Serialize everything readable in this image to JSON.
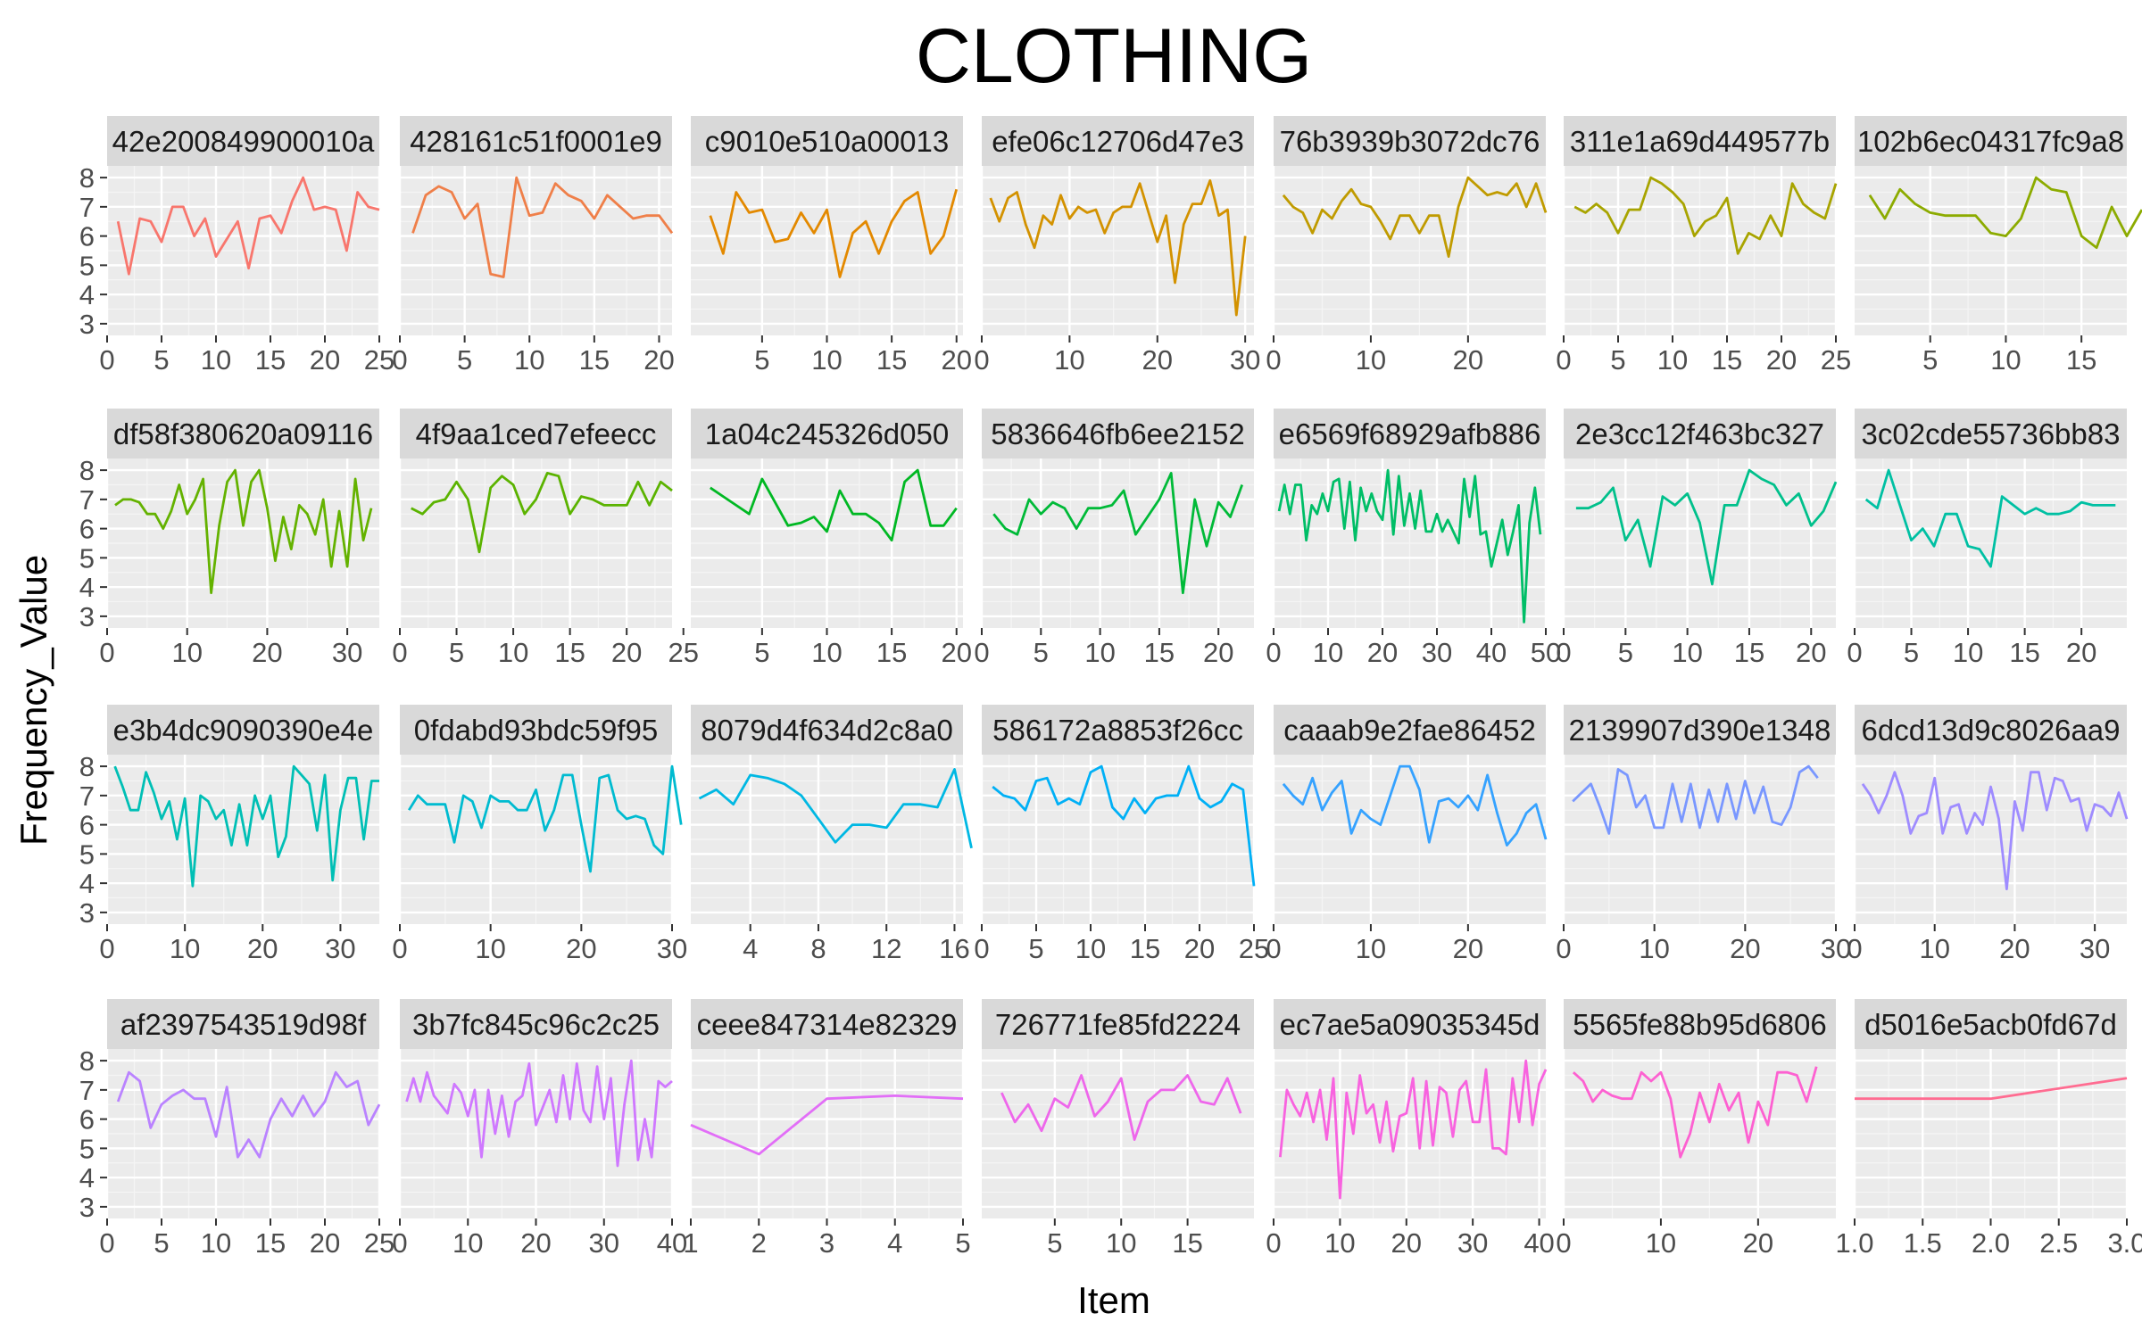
{
  "chart_data": {
    "type": "line",
    "title": "CLOTHING",
    "xlabel": "Item",
    "ylabel": "Frequency_Value",
    "ylim": [
      2.6,
      8.4
    ],
    "y_ticks": [
      3,
      4,
      5,
      6,
      7,
      8
    ],
    "grid": true,
    "legend": "none",
    "panels": [
      {
        "label": "42e200849900010a",
        "color": "#F8766D",
        "xlim": [
          0,
          25
        ],
        "x_ticks": [
          0,
          5,
          10,
          15,
          20,
          25
        ],
        "values": [
          6.5,
          4.7,
          6.6,
          6.5,
          5.8,
          7.0,
          7.0,
          6.0,
          6.6,
          5.3,
          5.9,
          6.5,
          4.9,
          6.6,
          6.7,
          6.1,
          7.2,
          8.0,
          6.9,
          7.0,
          6.9,
          5.5,
          7.5,
          7.0,
          6.9
        ]
      },
      {
        "label": "428161c51f0001e9",
        "color": "#EF7F49",
        "xlim": [
          0,
          21
        ],
        "x_ticks": [
          0,
          5,
          10,
          15,
          20
        ],
        "values": [
          6.1,
          7.4,
          7.7,
          7.5,
          6.6,
          7.1,
          4.7,
          4.6,
          8.0,
          6.7,
          6.8,
          7.8,
          7.4,
          7.2,
          6.6,
          7.4,
          7.0,
          6.6,
          6.7,
          6.7,
          6.1
        ]
      },
      {
        "label": "c9010e510a00013",
        "color": "#E38900",
        "xlim": [
          -0.5,
          20.5
        ],
        "x_ticks": [
          5,
          10,
          15,
          20
        ],
        "values": [
          6.7,
          5.4,
          7.5,
          6.8,
          6.9,
          5.8,
          5.9,
          6.8,
          6.1,
          6.9,
          4.6,
          6.1,
          6.5,
          5.4,
          6.5,
          7.2,
          7.5,
          5.4,
          6.0,
          7.6
        ]
      },
      {
        "label": "efe06c12706d47e3",
        "color": "#D39200",
        "xlim": [
          0,
          31
        ],
        "x_ticks": [
          0,
          10,
          20,
          30
        ],
        "values": [
          7.3,
          6.5,
          7.3,
          7.5,
          6.4,
          5.6,
          6.7,
          6.4,
          7.4,
          6.6,
          7.0,
          6.8,
          6.9,
          6.1,
          6.8,
          7.0,
          7.0,
          7.8,
          6.8,
          5.8,
          6.7,
          4.4,
          6.4,
          7.1,
          7.1,
          7.9,
          6.7,
          6.9,
          3.3,
          6.0
        ]
      },
      {
        "label": "76b3939b3072dc76",
        "color": "#C09B00",
        "xlim": [
          0,
          28
        ],
        "x_ticks": [
          0,
          10,
          20
        ],
        "values": [
          7.4,
          7.0,
          6.8,
          6.1,
          6.9,
          6.6,
          7.2,
          7.6,
          7.1,
          7.0,
          6.5,
          5.9,
          6.7,
          6.7,
          6.1,
          6.7,
          6.7,
          5.3,
          7.0,
          8.0,
          7.7,
          7.4,
          7.5,
          7.4,
          7.8,
          7.0,
          7.8,
          6.8
        ]
      },
      {
        "label": "311e1a69d449577b",
        "color": "#A8A400",
        "xlim": [
          0,
          25
        ],
        "x_ticks": [
          0,
          5,
          10,
          15,
          20,
          25
        ],
        "values": [
          7.0,
          6.8,
          7.1,
          6.8,
          6.1,
          6.9,
          6.9,
          8.0,
          7.8,
          7.5,
          7.1,
          6.0,
          6.5,
          6.7,
          7.3,
          5.4,
          6.1,
          5.9,
          6.7,
          6.0,
          7.8,
          7.1,
          6.8,
          6.6,
          7.8
        ]
      },
      {
        "label": "102b6ec04317fc9a8",
        "color": "#8CAB00",
        "xlim": [
          0,
          18
        ],
        "x_ticks": [
          5,
          10,
          15
        ],
        "values": [
          7.4,
          6.6,
          7.6,
          7.1,
          6.8,
          6.7,
          6.7,
          6.7,
          6.1,
          6.0,
          6.6,
          8.0,
          7.6,
          7.5,
          6.0,
          5.6,
          7.0,
          6.0,
          6.9
        ]
      },
      {
        "label": "df58f380620a09116",
        "color": "#64B200",
        "xlim": [
          0,
          34
        ],
        "x_ticks": [
          0,
          10,
          20,
          30
        ],
        "values": [
          6.8,
          7.0,
          7.0,
          6.9,
          6.5,
          6.5,
          6.0,
          6.6,
          7.5,
          6.5,
          7.0,
          7.7,
          3.8,
          6.1,
          7.6,
          8.0,
          6.1,
          7.6,
          8.0,
          6.7,
          4.9,
          6.4,
          5.3,
          6.8,
          6.5,
          5.8,
          7.0,
          4.7,
          6.6,
          4.7,
          7.7,
          5.6,
          6.7
        ]
      },
      {
        "label": "4f9aa1ced7efeecc",
        "color": "#5BB300",
        "xlim": [
          0,
          24
        ],
        "x_ticks": [
          0,
          5,
          10,
          15,
          20,
          25
        ],
        "values": [
          6.7,
          6.5,
          6.9,
          7.0,
          7.6,
          7.0,
          5.2,
          7.4,
          7.8,
          7.5,
          6.5,
          7.0,
          7.9,
          7.8,
          6.5,
          7.1,
          7.0,
          6.8,
          6.8,
          6.8,
          7.6,
          6.8,
          7.6,
          7.3
        ]
      },
      {
        "label": "1a04c245326d050",
        "color": "#00B823",
        "xlim": [
          -0.5,
          20.5
        ],
        "x_ticks": [
          5,
          10,
          15,
          20
        ],
        "values": [
          7.4,
          7.1,
          6.8,
          6.5,
          7.7,
          6.9,
          6.1,
          6.2,
          6.4,
          5.9,
          7.3,
          6.5,
          6.5,
          6.2,
          5.6,
          7.6,
          8.0,
          6.1,
          6.1,
          6.7
        ]
      },
      {
        "label": "5836646fb6ee2152",
        "color": "#00BA38",
        "xlim": [
          0,
          23
        ],
        "x_ticks": [
          0,
          5,
          10,
          15,
          20
        ],
        "values": [
          6.5,
          6.0,
          5.8,
          7.0,
          6.5,
          6.9,
          6.7,
          6.0,
          6.7,
          6.7,
          6.8,
          7.3,
          5.8,
          6.4,
          7.0,
          7.9,
          3.8,
          7.0,
          5.4,
          6.9,
          6.4,
          7.5
        ]
      },
      {
        "label": "e6569f68929afb886",
        "color": "#00BE67",
        "xlim": [
          0,
          50
        ],
        "x_ticks": [
          0,
          10,
          20,
          30,
          40,
          50
        ],
        "values": [
          6.6,
          7.5,
          6.5,
          7.5,
          7.5,
          5.6,
          6.8,
          6.5,
          7.2,
          6.6,
          7.6,
          7.7,
          6.0,
          7.6,
          5.6,
          7.4,
          6.6,
          7.2,
          6.6,
          6.3,
          8.0,
          5.8,
          7.8,
          6.1,
          7.2,
          6.0,
          7.3,
          5.9,
          5.9,
          6.5,
          5.9,
          6.3,
          5.9,
          5.5,
          7.7,
          6.4,
          7.8,
          5.8,
          5.9,
          4.7,
          5.5,
          6.3,
          5.1,
          5.9,
          6.8,
          2.8,
          6.2,
          7.4,
          5.8
        ]
      },
      {
        "label": "2e3cc12f463bc327",
        "color": "#00C08B",
        "xlim": [
          0,
          22
        ],
        "x_ticks": [
          0,
          5,
          10,
          15,
          20
        ],
        "values": [
          6.7,
          6.7,
          6.9,
          7.4,
          5.6,
          6.3,
          4.7,
          7.1,
          6.8,
          7.2,
          6.2,
          4.1,
          6.8,
          6.8,
          8.0,
          7.7,
          7.5,
          6.8,
          7.2,
          6.1,
          6.6,
          7.6
        ]
      },
      {
        "label": "3c02cde55736bb83",
        "color": "#00C0A3",
        "xlim": [
          0,
          24
        ],
        "x_ticks": [
          0,
          5,
          10,
          15,
          20
        ],
        "values": [
          7.0,
          6.7,
          8.0,
          6.8,
          5.6,
          6.0,
          5.4,
          6.5,
          6.5,
          5.4,
          5.3,
          4.7,
          7.1,
          6.8,
          6.5,
          6.7,
          6.5,
          6.5,
          6.6,
          6.9,
          6.8,
          6.8,
          6.8
        ]
      },
      {
        "label": "e3b4dc9090390e4e",
        "color": "#00BFB5",
        "xlim": [
          0,
          35
        ],
        "x_ticks": [
          0,
          10,
          20,
          30
        ],
        "values": [
          8.0,
          7.3,
          6.5,
          6.5,
          7.8,
          7.1,
          6.2,
          6.8,
          5.5,
          6.9,
          3.9,
          7.0,
          6.8,
          6.2,
          6.5,
          5.3,
          6.7,
          5.3,
          7.0,
          6.2,
          7.0,
          4.9,
          5.6,
          8.0,
          7.7,
          7.4,
          5.8,
          7.7,
          4.1,
          6.5,
          7.6,
          7.6,
          5.5,
          7.5,
          7.5
        ]
      },
      {
        "label": "0fdabd93bdc59f95",
        "color": "#00BBD0",
        "xlim": [
          0,
          30
        ],
        "x_ticks": [
          0,
          10,
          20,
          30
        ],
        "values": [
          6.5,
          7.0,
          6.7,
          6.7,
          6.7,
          5.4,
          7.0,
          6.8,
          5.9,
          7.0,
          6.8,
          6.8,
          6.5,
          6.5,
          7.2,
          5.8,
          6.5,
          7.7,
          7.7,
          6.0,
          4.4,
          7.6,
          7.7,
          6.5,
          6.2,
          6.3,
          6.2,
          5.3,
          5.0,
          8.0,
          6.0
        ]
      },
      {
        "label": "8079d4f634d2c8a0",
        "color": "#00B8E3",
        "xlim": [
          0.5,
          16.5
        ],
        "x_ticks": [
          4,
          8,
          12,
          16
        ],
        "values": [
          6.9,
          7.2,
          6.7,
          7.7,
          7.6,
          7.4,
          7.0,
          6.2,
          5.4,
          6.0,
          6.0,
          5.9,
          6.7,
          6.7,
          6.6,
          7.9,
          5.2
        ]
      },
      {
        "label": "586172a8853f26cc",
        "color": "#00B0F6",
        "xlim": [
          0,
          25
        ],
        "x_ticks": [
          0,
          5,
          10,
          15,
          20,
          25
        ],
        "values": [
          7.3,
          7.0,
          6.9,
          6.5,
          7.5,
          7.6,
          6.7,
          6.9,
          6.7,
          7.8,
          8.0,
          6.6,
          6.2,
          6.9,
          6.4,
          6.9,
          7.0,
          7.0,
          8.0,
          6.9,
          6.6,
          6.8,
          7.4,
          7.2,
          3.9
        ]
      },
      {
        "label": "caaab9e2fae86452",
        "color": "#35A2FF",
        "xlim": [
          0,
          28
        ],
        "x_ticks": [
          0,
          10,
          20
        ],
        "values": [
          7.4,
          7.0,
          6.7,
          7.6,
          6.5,
          7.1,
          7.5,
          5.7,
          6.5,
          6.2,
          6.0,
          7.0,
          8.0,
          8.0,
          7.2,
          5.4,
          6.8,
          6.9,
          6.6,
          7.0,
          6.5,
          7.7,
          6.4,
          5.3,
          5.7,
          6.4,
          6.7,
          5.5
        ]
      },
      {
        "label": "2139907d390e1348",
        "color": "#7997FF",
        "xlim": [
          0,
          30
        ],
        "x_ticks": [
          0,
          10,
          20,
          30
        ],
        "values": [
          6.8,
          7.1,
          7.4,
          6.6,
          5.7,
          7.9,
          7.7,
          6.6,
          7.0,
          5.9,
          5.9,
          7.4,
          6.1,
          7.4,
          5.9,
          7.2,
          6.1,
          7.4,
          6.2,
          7.5,
          6.4,
          7.3,
          6.1,
          6.0,
          6.6,
          7.8,
          8.0,
          7.6
        ]
      },
      {
        "label": "6dcd13d9c8026aa9",
        "color": "#9F8CFF",
        "xlim": [
          0,
          34
        ],
        "x_ticks": [
          0,
          10,
          20,
          30
        ],
        "values": [
          7.4,
          7.0,
          6.4,
          7.0,
          7.8,
          7.0,
          5.7,
          6.3,
          6.4,
          7.6,
          5.7,
          6.6,
          6.7,
          5.7,
          6.4,
          6.0,
          7.3,
          6.2,
          3.8,
          6.8,
          5.8,
          7.8,
          7.8,
          6.5,
          7.6,
          7.5,
          6.8,
          6.9,
          5.8,
          6.7,
          6.6,
          6.3,
          7.1,
          6.2
        ]
      },
      {
        "label": "af2397543519d98f",
        "color": "#BA83FF",
        "xlim": [
          0,
          25
        ],
        "x_ticks": [
          0,
          5,
          10,
          15,
          20,
          25
        ],
        "values": [
          6.6,
          7.6,
          7.3,
          5.7,
          6.5,
          6.8,
          7.0,
          6.7,
          6.7,
          5.4,
          7.1,
          4.7,
          5.3,
          4.7,
          6.0,
          6.7,
          6.1,
          6.8,
          6.1,
          6.6,
          7.6,
          7.1,
          7.3,
          5.8,
          6.5
        ]
      },
      {
        "label": "3b7fc845c96c2c25",
        "color": "#CF78FF",
        "xlim": [
          0,
          40
        ],
        "x_ticks": [
          0,
          10,
          20,
          30,
          40
        ],
        "values": [
          6.6,
          7.4,
          6.6,
          7.6,
          6.8,
          6.5,
          6.2,
          7.2,
          6.9,
          6.1,
          7.0,
          4.7,
          7.0,
          5.5,
          6.8,
          5.4,
          6.6,
          6.8,
          7.9,
          5.8,
          6.4,
          7.0,
          5.9,
          7.5,
          6.0,
          7.9,
          6.3,
          5.9,
          7.8,
          6.0,
          7.4,
          4.4,
          6.5,
          8.0,
          4.6,
          6.0,
          4.7,
          7.3,
          7.1,
          7.3
        ]
      },
      {
        "label": "ceee847314e82329",
        "color": "#E26EF7",
        "xlim": [
          1,
          5
        ],
        "x_ticks": [
          1,
          2,
          3,
          4,
          5
        ],
        "x": [
          1,
          2,
          3,
          4,
          5
        ],
        "values": [
          5.8,
          4.8,
          6.7,
          6.8,
          6.7
        ]
      },
      {
        "label": "726771fe85fd2224",
        "color": "#EE67EB",
        "xlim": [
          -0.5,
          20
        ],
        "x_ticks": [
          5,
          10,
          15
        ],
        "values": [
          6.9,
          5.9,
          6.5,
          5.6,
          6.7,
          6.4,
          7.5,
          6.1,
          6.6,
          7.4,
          5.3,
          6.6,
          7.0,
          7.0,
          7.5,
          6.6,
          6.5,
          7.4,
          6.2
        ]
      },
      {
        "label": "ec7ae5a09035345d",
        "color": "#F863DF",
        "xlim": [
          0,
          41
        ],
        "x_ticks": [
          0,
          10,
          20,
          30,
          40
        ],
        "values": [
          4.7,
          7.0,
          6.5,
          6.1,
          6.9,
          5.9,
          7.0,
          5.3,
          7.4,
          3.3,
          6.9,
          5.5,
          7.5,
          6.2,
          6.5,
          5.2,
          6.6,
          4.9,
          6.1,
          6.2,
          7.4,
          5.0,
          7.3,
          5.1,
          7.1,
          6.9,
          5.4,
          7.0,
          7.3,
          5.9,
          5.9,
          7.7,
          5.0,
          5.0,
          4.8,
          7.4,
          5.9,
          8.0,
          5.8,
          7.2,
          7.7
        ]
      },
      {
        "label": "5565fe88b95d6806",
        "color": "#FD61D1",
        "xlim": [
          0,
          28
        ],
        "x_ticks": [
          0,
          10,
          20
        ],
        "values": [
          7.6,
          7.3,
          6.6,
          7.0,
          6.8,
          6.7,
          6.7,
          7.6,
          7.3,
          7.6,
          6.7,
          4.7,
          5.5,
          6.9,
          5.9,
          7.2,
          6.3,
          6.9,
          5.2,
          6.6,
          5.8,
          7.6,
          7.6,
          7.5,
          6.6,
          7.8
        ]
      },
      {
        "label": "d5016e5acb0fd67d",
        "color": "#FF6C91",
        "xlim": [
          1,
          3
        ],
        "x_ticks": [
          1.0,
          1.5,
          2.0,
          2.5,
          3.0
        ],
        "x": [
          1,
          2,
          3
        ],
        "values": [
          6.7,
          6.7,
          7.4
        ]
      }
    ]
  }
}
